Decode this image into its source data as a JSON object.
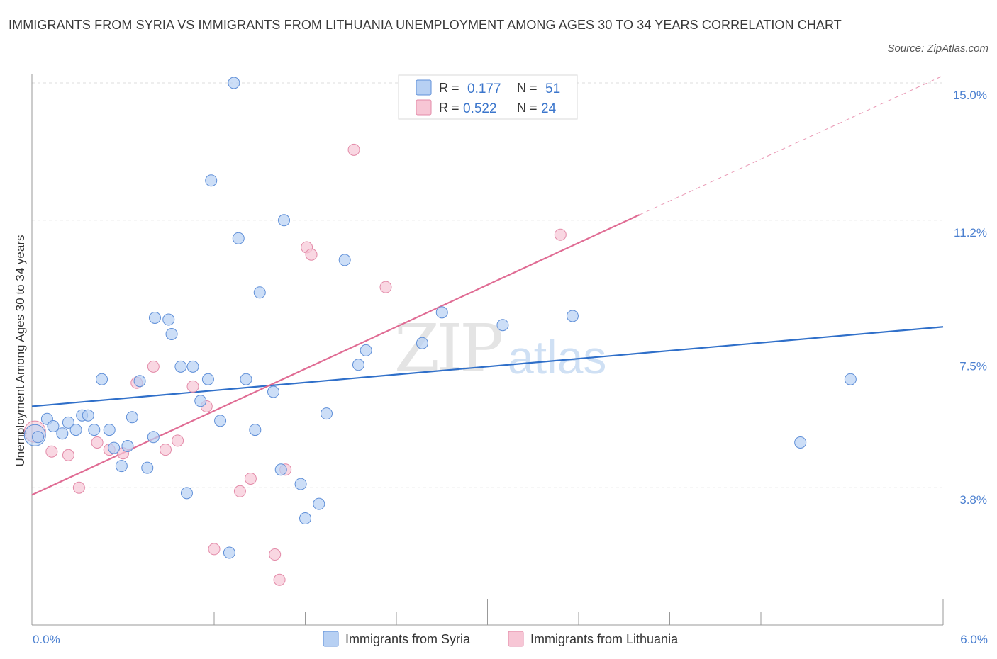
{
  "title": "IMMIGRANTS FROM SYRIA VS IMMIGRANTS FROM LITHUANIA UNEMPLOYMENT AMONG AGES 30 TO 34 YEARS CORRELATION CHART",
  "source": "Source: ZipAtlas.com",
  "watermark": {
    "part1": "ZIP",
    "part2": "atlas"
  },
  "colors": {
    "syria_fill": "#b7d0f3",
    "syria_stroke": "#5f8fd8",
    "syria_line": "#2f6fc9",
    "lithuania_fill": "#f7c6d5",
    "lithuania_stroke": "#e38aa8",
    "lithuania_line": "#e06c94",
    "grid": "#dcdcdc",
    "tick_text": "#4a7fd0"
  },
  "stats": [
    {
      "r_label": "R =",
      "r_value": "0.177",
      "n_label": "N =",
      "n_value": "51"
    },
    {
      "r_label": "R =",
      "r_value": "0.522",
      "n_label": "N =",
      "n_value": "24"
    }
  ],
  "chart_data": {
    "type": "scatter",
    "title": "IMMIGRANTS FROM SYRIA VS IMMIGRANTS FROM LITHUANIA UNEMPLOYMENT AMONG AGES 30 TO 34 YEARS CORRELATION CHART",
    "xlabel": "",
    "ylabel": "Unemployment Among Ages 30 to 34 years",
    "xlim": [
      0,
      6
    ],
    "ylim": [
      0,
      15
    ],
    "x_tick_labels": [
      "0.0%",
      "6.0%"
    ],
    "y_ticks": [
      3.8,
      7.5,
      11.2,
      15.0
    ],
    "y_tick_labels": [
      "3.8%",
      "7.5%",
      "11.2%",
      "15.0%"
    ],
    "grid": true,
    "legend_position": "bottom-center",
    "series": [
      {
        "name": "Immigrants from Syria",
        "r": 0.177,
        "n": 51,
        "trend": {
          "x": [
            0,
            6
          ],
          "y": [
            6.05,
            8.25
          ]
        },
        "points": [
          [
            0.04,
            5.2
          ],
          [
            0.1,
            5.7
          ],
          [
            0.14,
            5.5
          ],
          [
            0.2,
            5.3
          ],
          [
            0.24,
            5.6
          ],
          [
            0.29,
            5.4
          ],
          [
            0.33,
            5.8
          ],
          [
            0.37,
            5.8
          ],
          [
            0.41,
            5.4
          ],
          [
            0.46,
            6.8
          ],
          [
            0.51,
            5.4
          ],
          [
            0.54,
            4.9
          ],
          [
            0.59,
            4.4
          ],
          [
            0.63,
            4.95
          ],
          [
            0.66,
            5.75
          ],
          [
            0.71,
            6.75
          ],
          [
            0.76,
            4.35
          ],
          [
            0.8,
            5.2
          ],
          [
            0.81,
            8.5
          ],
          [
            0.9,
            8.45
          ],
          [
            0.92,
            8.05
          ],
          [
            0.98,
            7.15
          ],
          [
            1.02,
            3.65
          ],
          [
            1.06,
            7.15
          ],
          [
            1.11,
            6.2
          ],
          [
            1.16,
            6.8
          ],
          [
            1.18,
            12.3
          ],
          [
            1.24,
            5.65
          ],
          [
            1.3,
            2.0
          ],
          [
            1.33,
            15.0
          ],
          [
            1.36,
            10.7
          ],
          [
            1.41,
            6.8
          ],
          [
            1.47,
            5.4
          ],
          [
            1.5,
            9.2
          ],
          [
            1.59,
            6.45
          ],
          [
            1.64,
            4.3
          ],
          [
            1.66,
            11.2
          ],
          [
            1.77,
            3.9
          ],
          [
            1.8,
            2.95
          ],
          [
            1.89,
            3.35
          ],
          [
            1.94,
            5.85
          ],
          [
            2.06,
            10.1
          ],
          [
            2.15,
            7.2
          ],
          [
            2.2,
            7.6
          ],
          [
            2.57,
            7.8
          ],
          [
            2.7,
            8.65
          ],
          [
            3.1,
            8.3
          ],
          [
            3.56,
            8.55
          ],
          [
            5.06,
            5.05
          ],
          [
            5.39,
            6.8
          ]
        ],
        "large_points": [
          [
            0.02,
            5.25
          ]
        ]
      },
      {
        "name": "Immigrants from Lithuania",
        "r": 0.522,
        "n": 24,
        "trend": {
          "x": [
            0,
            4
          ],
          "y": [
            3.6,
            11.35
          ]
        },
        "trend_extension": {
          "x": [
            4,
            6
          ],
          "y": [
            11.35,
            15.2
          ]
        },
        "points": [
          [
            0.13,
            4.8
          ],
          [
            0.24,
            4.7
          ],
          [
            0.31,
            3.8
          ],
          [
            0.43,
            5.05
          ],
          [
            0.51,
            4.85
          ],
          [
            0.6,
            4.75
          ],
          [
            0.69,
            6.7
          ],
          [
            0.8,
            7.15
          ],
          [
            0.88,
            4.85
          ],
          [
            0.96,
            5.1
          ],
          [
            1.06,
            6.6
          ],
          [
            1.15,
            6.05
          ],
          [
            1.2,
            2.1
          ],
          [
            1.37,
            3.7
          ],
          [
            1.44,
            4.05
          ],
          [
            1.6,
            1.95
          ],
          [
            1.63,
            1.25
          ],
          [
            1.67,
            4.3
          ],
          [
            1.81,
            10.45
          ],
          [
            1.84,
            10.25
          ],
          [
            2.12,
            13.15
          ],
          [
            2.33,
            9.35
          ],
          [
            3.48,
            10.8
          ]
        ],
        "large_points": [
          [
            0.02,
            5.35
          ]
        ]
      }
    ]
  }
}
